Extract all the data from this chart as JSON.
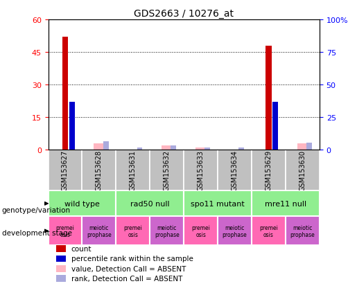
{
  "title": "GDS2663 / 10276_at",
  "samples": [
    "GSM153627",
    "GSM153628",
    "GSM153631",
    "GSM153632",
    "GSM153633",
    "GSM153634",
    "GSM153629",
    "GSM153630"
  ],
  "count_values": [
    52,
    0,
    0,
    0,
    0,
    0,
    48,
    0
  ],
  "count_absent": [
    0,
    3.0,
    0,
    1.8,
    0.8,
    0,
    0,
    3.0
  ],
  "percentile_values": [
    22,
    0,
    0,
    0,
    0,
    0,
    22,
    0
  ],
  "percentile_absent": [
    0,
    3.8,
    1.0,
    1.8,
    0.8,
    1.0,
    0,
    3.2
  ],
  "ylim_left": [
    0,
    60
  ],
  "ylim_right": [
    0,
    100
  ],
  "yticks_left": [
    0,
    15,
    30,
    45,
    60
  ],
  "yticks_right": [
    0,
    25,
    50,
    75,
    100
  ],
  "yticklabels_left": [
    "0",
    "15",
    "30",
    "45",
    "60"
  ],
  "yticklabels_right": [
    "0",
    "25",
    "50",
    "75",
    "100%"
  ],
  "genotype_groups": [
    {
      "label": "wild type",
      "span": [
        0,
        2
      ],
      "color": "#90EE90"
    },
    {
      "label": "rad50 null",
      "span": [
        2,
        4
      ],
      "color": "#90EE90"
    },
    {
      "label": "spo11 mutant",
      "span": [
        4,
        6
      ],
      "color": "#90EE90"
    },
    {
      "label": "mre11 null",
      "span": [
        6,
        8
      ],
      "color": "#90EE90"
    }
  ],
  "stage_groups": [
    {
      "label": "premei\nosis",
      "span": [
        0,
        1
      ],
      "color": "#FF69B4"
    },
    {
      "label": "meiotic\nprophase",
      "span": [
        1,
        2
      ],
      "color": "#CC66CC"
    },
    {
      "label": "premei\nosis",
      "span": [
        2,
        3
      ],
      "color": "#FF69B4"
    },
    {
      "label": "meiotic\nprophase",
      "span": [
        3,
        4
      ],
      "color": "#CC66CC"
    },
    {
      "label": "premei\nosis",
      "span": [
        4,
        5
      ],
      "color": "#FF69B4"
    },
    {
      "label": "meiotic\nprophase",
      "span": [
        5,
        6
      ],
      "color": "#CC66CC"
    },
    {
      "label": "premei\nosis",
      "span": [
        6,
        7
      ],
      "color": "#FF69B4"
    },
    {
      "label": "meiotic\nprophase",
      "span": [
        7,
        8
      ],
      "color": "#CC66CC"
    }
  ],
  "bar_color_red": "#CC0000",
  "bar_color_blue": "#0000CC",
  "bar_color_pink": "#FFB6C1",
  "bar_color_lightblue": "#AAAADD",
  "legend_items": [
    {
      "color": "#CC0000",
      "label": "count"
    },
    {
      "color": "#0000CC",
      "label": "percentile rank within the sample"
    },
    {
      "color": "#FFB6C1",
      "label": "value, Detection Call = ABSENT"
    },
    {
      "color": "#AAAADD",
      "label": "rank, Detection Call = ABSENT"
    }
  ],
  "bar_width": 0.18,
  "sample_color": "#C0C0C0",
  "background_color": "#ffffff"
}
